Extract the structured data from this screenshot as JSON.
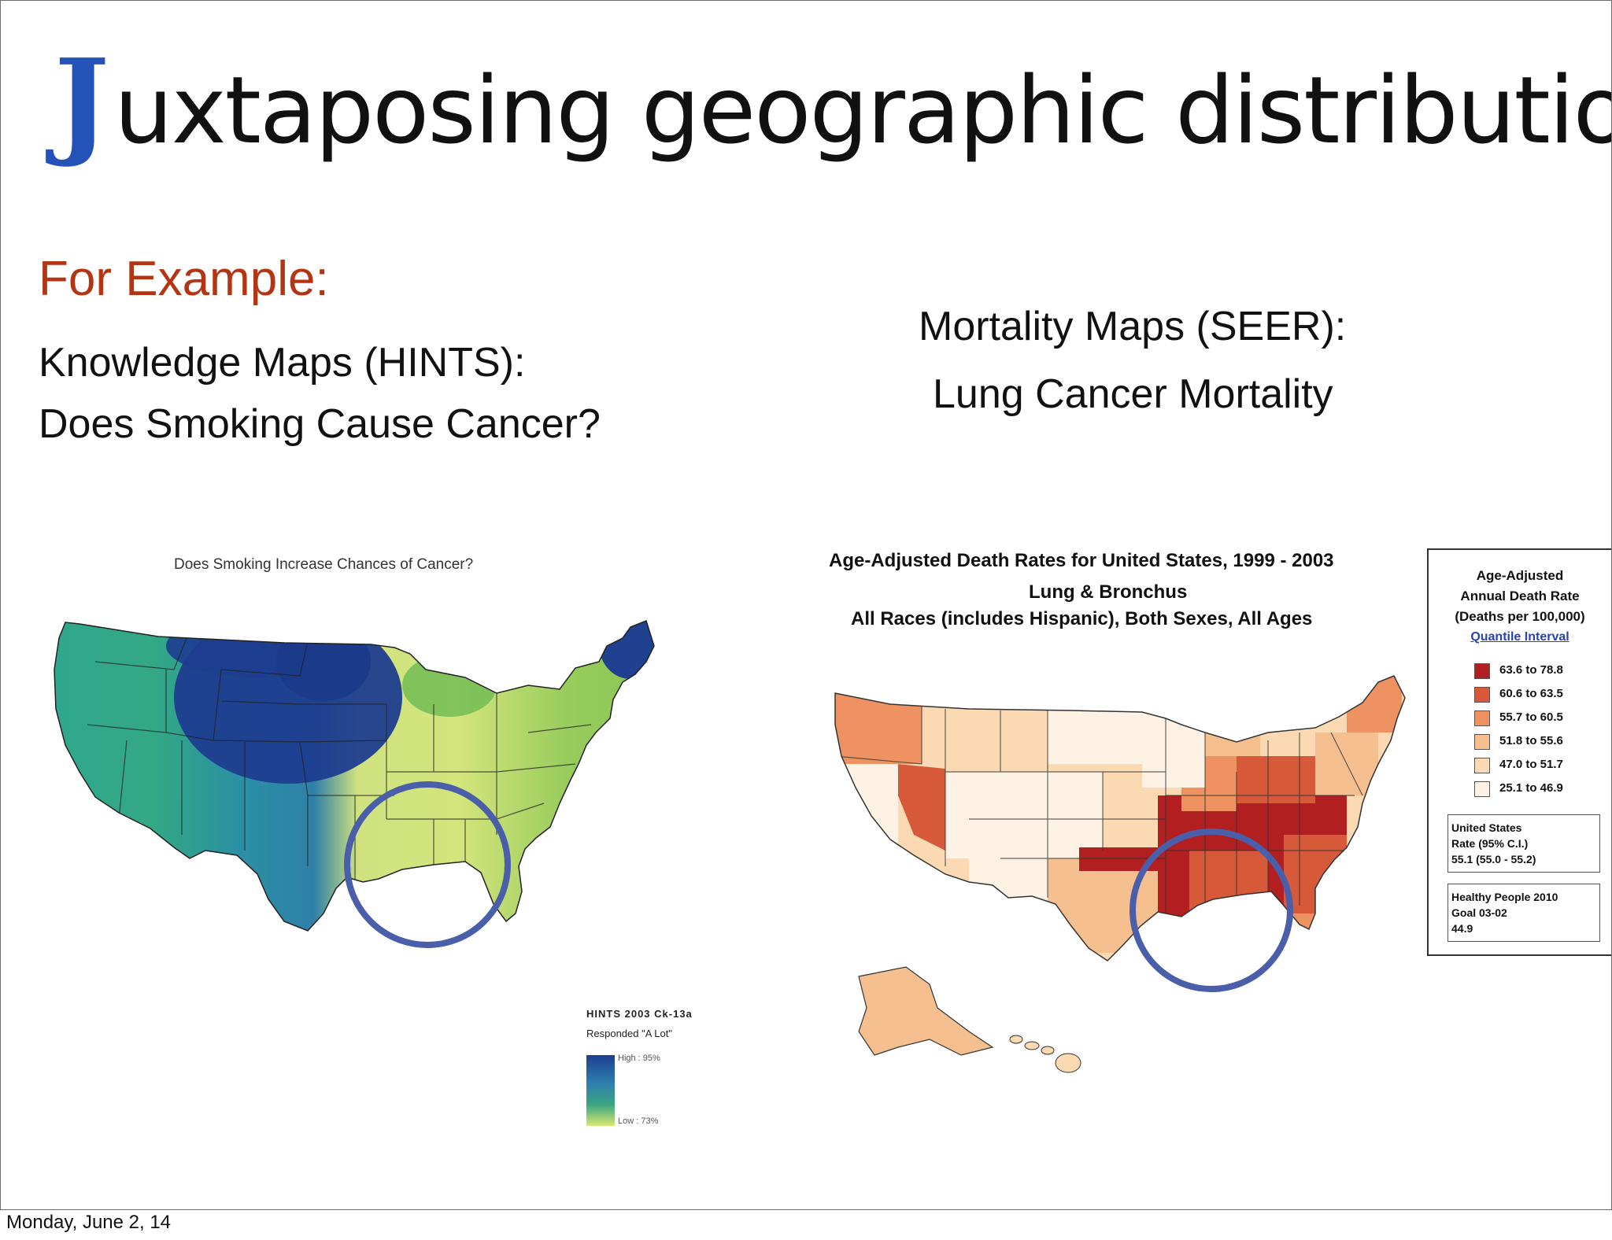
{
  "slide": {
    "title_initial": "J",
    "title_rest": "uxtaposing geographic distributions",
    "for_example": "For Example:",
    "left_line1": "Knowledge Maps (HINTS):",
    "left_line2": "Does Smoking Cause Cancer?",
    "right_line1": "Mortality Maps (SEER):",
    "right_line2": "Lung Cancer Mortality",
    "footer_date": "Monday, June 2, 14"
  },
  "left_map": {
    "title": "Does Smoking Increase Chances of Cancer?",
    "legend_head": "HINTS 2003 Ck-13a",
    "legend_sub": "Responded \"A Lot\"",
    "legend_high": "High : 95%",
    "legend_low": "Low : 73%"
  },
  "right_map": {
    "title_line1": "Age-Adjusted Death Rates for United States, 1999 - 2003",
    "title_line2": "Lung & Bronchus",
    "title_line3": "All Races (includes Hispanic), Both Sexes, All Ages",
    "legend": {
      "head1": "Age-Adjusted",
      "head2": "Annual Death Rate",
      "head3": "(Deaths per 100,000)",
      "link": "Quantile Interval",
      "ranges": [
        {
          "label": "63.6 to 78.8",
          "color": "#b11f20"
        },
        {
          "label": "60.6 to 63.5",
          "color": "#d65a3a"
        },
        {
          "label": "55.7 to 60.5",
          "color": "#ef9262"
        },
        {
          "label": "51.8 to 55.6",
          "color": "#f6bf8f"
        },
        {
          "label": "47.0 to 51.7",
          "color": "#fbd9b2"
        },
        {
          "label": "25.1 to 46.9",
          "color": "#fdf2e3"
        }
      ],
      "us_rate_label": "United States",
      "us_rate_line2": "Rate (95% C.I.)",
      "us_rate_value": "55.1 (55.0 - 55.2)",
      "hp_label": "Healthy People 2010",
      "hp_goal": "Goal 03-02",
      "hp_value": "44.9"
    }
  },
  "colors": {
    "title_initial": "#2453b8",
    "for_example": "#b23514",
    "circle": "#4a5eaa"
  }
}
